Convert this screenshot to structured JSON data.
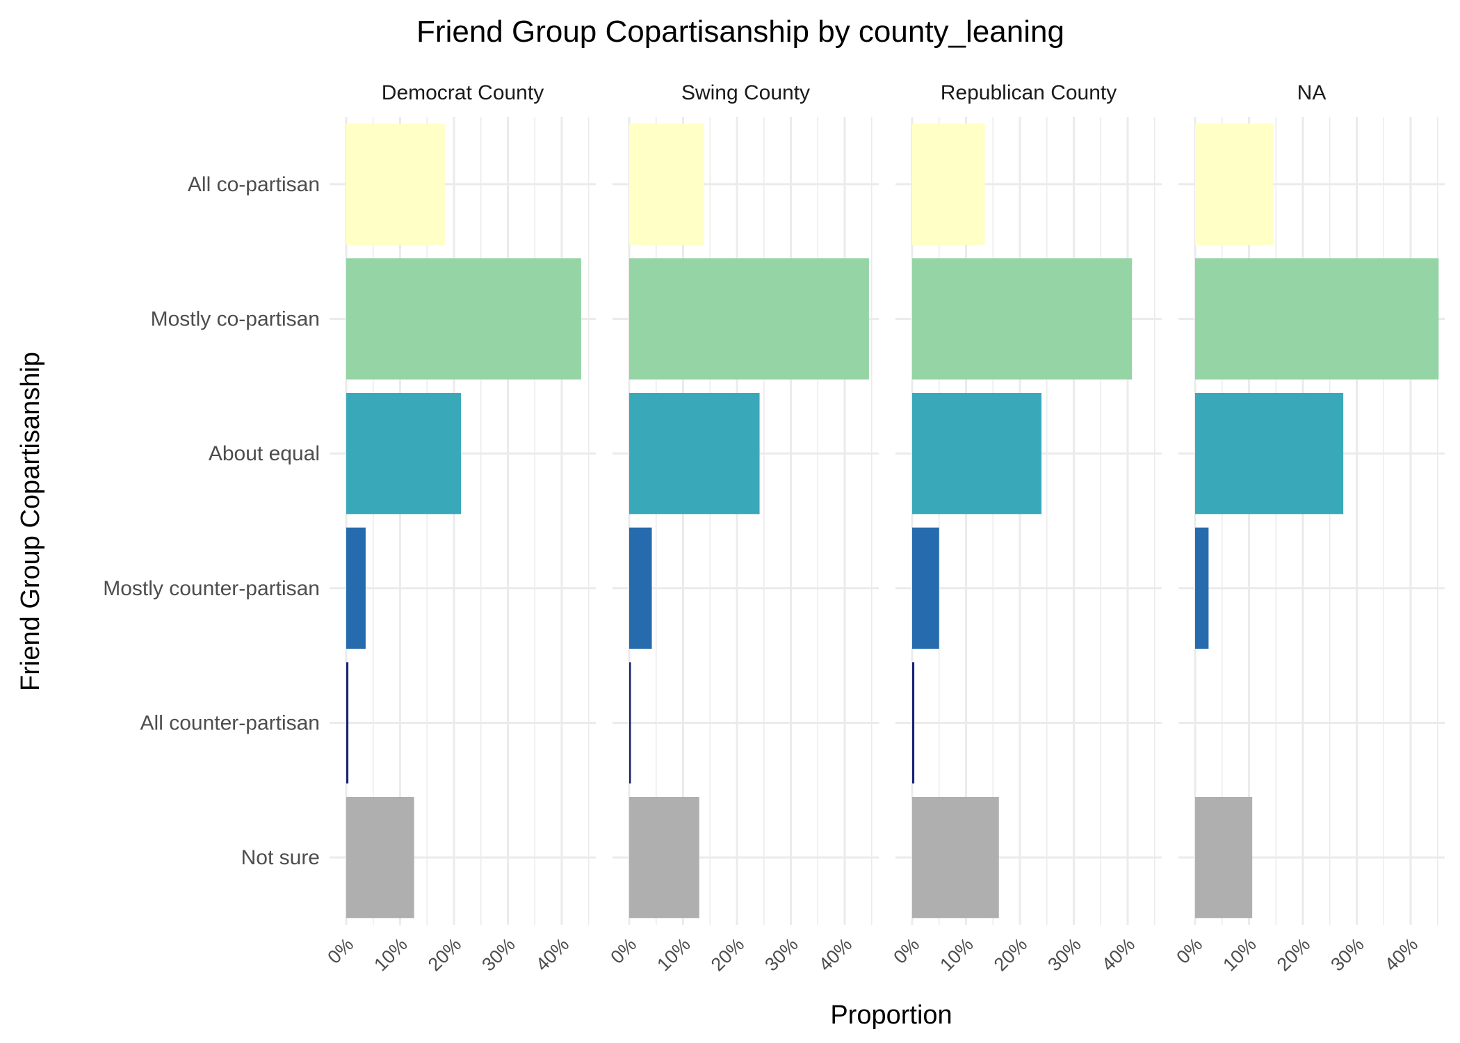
{
  "chart_data": {
    "type": "bar",
    "orientation": "horizontal",
    "title": "Friend Group Copartisanship by county_leaning",
    "xlabel": "Proportion",
    "ylabel": "Friend Group Copartisanship",
    "xlim": [
      0,
      0.45
    ],
    "x_ticks": [
      0,
      0.1,
      0.2,
      0.3,
      0.4
    ],
    "x_tick_labels": [
      "0%",
      "10%",
      "20%",
      "30%",
      "40%"
    ],
    "grid": true,
    "legend": "none",
    "categories": [
      "All co-partisan",
      "Mostly co-partisan",
      "About equal",
      "Mostly counter-partisan",
      "All counter-partisan",
      "Not sure"
    ],
    "category_colors": [
      "#ffffc6",
      "#94d4a5",
      "#39a9ba",
      "#266bad",
      "#192373",
      "#afafaf"
    ],
    "facets": [
      {
        "name": "Democrat County",
        "values": [
          0.183,
          0.436,
          0.213,
          0.036,
          0.004,
          0.126
        ]
      },
      {
        "name": "Swing County",
        "values": [
          0.139,
          0.445,
          0.242,
          0.042,
          0.003,
          0.13
        ]
      },
      {
        "name": "Republican County",
        "values": [
          0.135,
          0.408,
          0.24,
          0.05,
          0.004,
          0.161
        ]
      },
      {
        "name": "NA",
        "values": [
          0.145,
          0.452,
          0.275,
          0.025,
          0.0,
          0.106
        ]
      }
    ]
  }
}
